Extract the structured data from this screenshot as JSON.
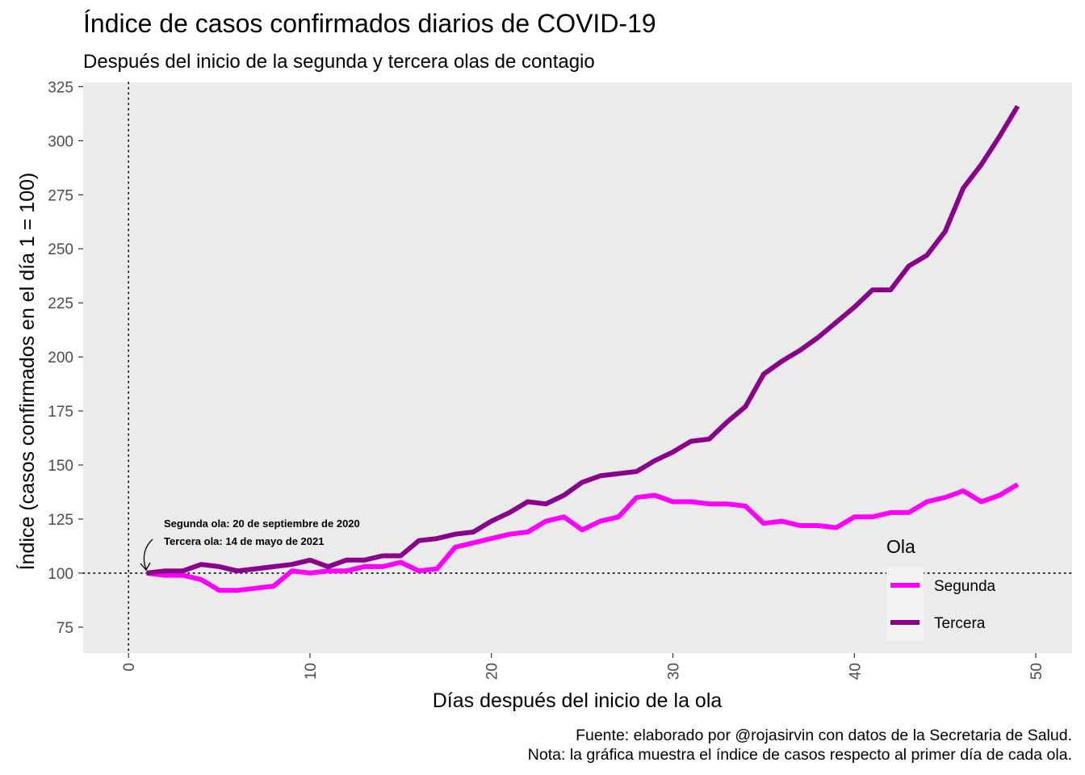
{
  "chart_data": {
    "type": "line",
    "title": "Índice de casos confirmados diarios de COVID-19",
    "subtitle": "Después del inicio de la segunda y tercera olas de contagio",
    "xlabel": "Días después del inicio de la ola",
    "ylabel": "Índice (casos confirmados en el día 1 = 100)",
    "xlim": [
      -2.5,
      52
    ],
    "ylim": [
      63,
      327
    ],
    "x_ticks": [
      0,
      10,
      20,
      30,
      40,
      50
    ],
    "y_ticks": [
      75,
      100,
      125,
      150,
      175,
      200,
      225,
      250,
      275,
      300,
      325
    ],
    "grid": false,
    "reference_lines": {
      "x": 0,
      "y": 100,
      "style": "dotted"
    },
    "x": [
      1,
      2,
      3,
      4,
      5,
      6,
      7,
      8,
      9,
      10,
      11,
      12,
      13,
      14,
      15,
      16,
      17,
      18,
      19,
      20,
      21,
      22,
      23,
      24,
      25,
      26,
      27,
      28,
      29,
      30,
      31,
      32,
      33,
      34,
      35,
      36,
      37,
      38,
      39,
      40,
      41,
      42,
      43,
      44,
      45,
      46,
      47,
      48,
      49
    ],
    "series": [
      {
        "name": "Segunda",
        "color": "#ff00ff",
        "values": [
          100,
          99,
          99,
          97,
          92,
          92,
          93,
          94,
          101,
          100,
          101,
          101,
          103,
          103,
          105,
          101,
          102,
          112,
          114,
          116,
          118,
          119,
          124,
          126,
          120,
          124,
          126,
          135,
          136,
          133,
          133,
          132,
          132,
          131,
          123,
          124,
          122,
          122,
          121,
          126,
          126,
          128,
          128,
          133,
          135,
          138,
          133,
          136,
          141
        ]
      },
      {
        "name": "Tercera",
        "color": "#8b008b",
        "values": [
          100,
          101,
          101,
          104,
          103,
          101,
          102,
          103,
          104,
          106,
          103,
          106,
          106,
          108,
          108,
          115,
          116,
          118,
          119,
          124,
          128,
          133,
          132,
          136,
          142,
          145,
          146,
          147,
          152,
          156,
          161,
          162,
          170,
          177,
          192,
          198,
          203,
          209,
          216,
          223,
          231,
          231,
          242,
          247,
          258,
          278,
          289,
          302,
          316
        ]
      }
    ],
    "legend": {
      "title": "Ola",
      "position": "right-bottom",
      "labels": [
        "Segunda",
        "Tercera"
      ]
    },
    "annotations": [
      "Segunda ola: 20 de septiembre de 2020",
      "Tercera ola: 14 de mayo de 2021"
    ],
    "caption": [
      "Fuente: elaborado por @rojasirvin con datos de la Secretaria de Salud.",
      "Nota: la gráfica muestra el índice de casos respecto al primer día de cada ola."
    ]
  }
}
